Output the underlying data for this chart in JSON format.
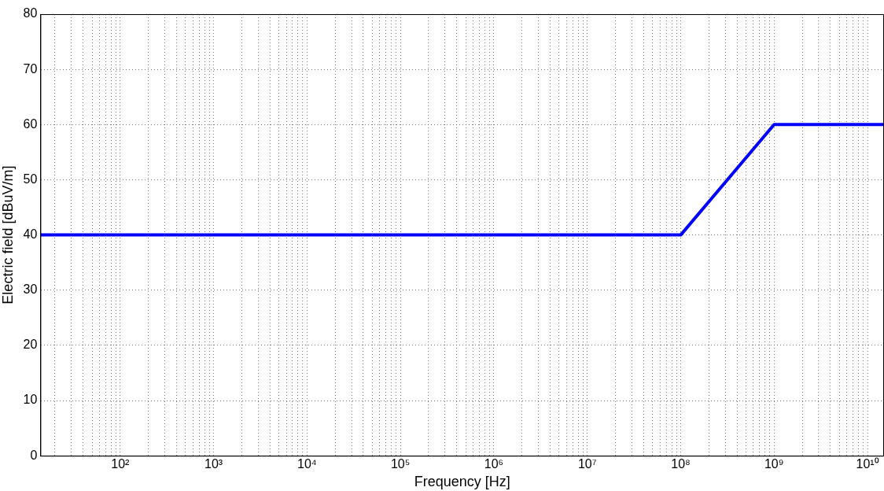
{
  "chart_data": {
    "type": "line",
    "xlabel": "Frequency [Hz]",
    "ylabel": "Electric field [dBuV/m]",
    "log": "x",
    "grid": true,
    "legend": false,
    "marker": "none",
    "line_style": "solid",
    "xlim": [
      14,
      15000000000
    ],
    "xticks": [
      {
        "value": 20,
        "label": null
      },
      {
        "value": 30,
        "label": null
      },
      {
        "value": 40,
        "label": null
      },
      {
        "value": 50,
        "label": null
      },
      {
        "value": 60,
        "label": null
      },
      {
        "value": 70,
        "label": null
      },
      {
        "value": 80,
        "label": null
      },
      {
        "value": 90,
        "label": null
      },
      {
        "value": 100,
        "label": "10²"
      },
      {
        "value": 200,
        "label": null
      },
      {
        "value": 300,
        "label": null
      },
      {
        "value": 400,
        "label": null
      },
      {
        "value": 500,
        "label": null
      },
      {
        "value": 600,
        "label": null
      },
      {
        "value": 700,
        "label": null
      },
      {
        "value": 800,
        "label": null
      },
      {
        "value": 900,
        "label": null
      },
      {
        "value": 1000,
        "label": "10³"
      },
      {
        "value": 2000,
        "label": null
      },
      {
        "value": 3000,
        "label": null
      },
      {
        "value": 4000,
        "label": null
      },
      {
        "value": 5000,
        "label": null
      },
      {
        "value": 6000,
        "label": null
      },
      {
        "value": 7000,
        "label": null
      },
      {
        "value": 8000,
        "label": null
      },
      {
        "value": 9000,
        "label": null
      },
      {
        "value": 10000,
        "label": "10⁴"
      },
      {
        "value": 20000,
        "label": null
      },
      {
        "value": 30000,
        "label": null
      },
      {
        "value": 40000,
        "label": null
      },
      {
        "value": 50000,
        "label": null
      },
      {
        "value": 60000,
        "label": null
      },
      {
        "value": 70000,
        "label": null
      },
      {
        "value": 80000,
        "label": null
      },
      {
        "value": 90000,
        "label": null
      },
      {
        "value": 100000.0,
        "label": "10⁵"
      },
      {
        "value": 200000.0,
        "label": null
      },
      {
        "value": 300000.0,
        "label": null
      },
      {
        "value": 400000.0,
        "label": null
      },
      {
        "value": 500000.0,
        "label": null
      },
      {
        "value": 600000.0,
        "label": null
      },
      {
        "value": 700000.0,
        "label": null
      },
      {
        "value": 800000.0,
        "label": null
      },
      {
        "value": 900000.0,
        "label": null
      },
      {
        "value": 1000000.0,
        "label": "10⁶"
      },
      {
        "value": 2000000.0,
        "label": null
      },
      {
        "value": 3000000.0,
        "label": null
      },
      {
        "value": 4000000.0,
        "label": null
      },
      {
        "value": 5000000.0,
        "label": null
      },
      {
        "value": 6000000.0,
        "label": null
      },
      {
        "value": 7000000.0,
        "label": null
      },
      {
        "value": 8000000.0,
        "label": null
      },
      {
        "value": 9000000.0,
        "label": null
      },
      {
        "value": 10000000.0,
        "label": "10⁷"
      },
      {
        "value": 20000000.0,
        "label": null
      },
      {
        "value": 30000000.0,
        "label": null
      },
      {
        "value": 40000000.0,
        "label": null
      },
      {
        "value": 50000000.0,
        "label": null
      },
      {
        "value": 60000000.0,
        "label": null
      },
      {
        "value": 70000000.0,
        "label": null
      },
      {
        "value": 80000000.0,
        "label": null
      },
      {
        "value": 90000000.0,
        "label": null
      },
      {
        "value": 100000000.0,
        "label": "10⁸"
      },
      {
        "value": 200000000.0,
        "label": null
      },
      {
        "value": 300000000.0,
        "label": null
      },
      {
        "value": 400000000.0,
        "label": null
      },
      {
        "value": 500000000.0,
        "label": null
      },
      {
        "value": 600000000.0,
        "label": null
      },
      {
        "value": 700000000.0,
        "label": null
      },
      {
        "value": 800000000.0,
        "label": null
      },
      {
        "value": 900000000.0,
        "label": null
      },
      {
        "value": 1000000000.0,
        "label": "10⁹"
      },
      {
        "value": 2000000000.0,
        "label": null
      },
      {
        "value": 3000000000.0,
        "label": null
      },
      {
        "value": 4000000000.0,
        "label": null
      },
      {
        "value": 5000000000.0,
        "label": null
      },
      {
        "value": 6000000000.0,
        "label": null
      },
      {
        "value": 7000000000.0,
        "label": null
      },
      {
        "value": 8000000000.0,
        "label": null
      },
      {
        "value": 9000000000.0,
        "label": null
      },
      {
        "value": 10000000000.0,
        "label": "10¹⁰"
      }
    ],
    "ylim": [
      0,
      80
    ],
    "yticks": [
      0,
      10,
      20,
      30,
      40,
      50,
      60,
      70,
      80
    ],
    "series": [
      {
        "color": "#0000ff",
        "x": [
          14,
          100000000,
          1000000000,
          15000000000
        ],
        "values": [
          40,
          40,
          60,
          60
        ]
      }
    ]
  }
}
